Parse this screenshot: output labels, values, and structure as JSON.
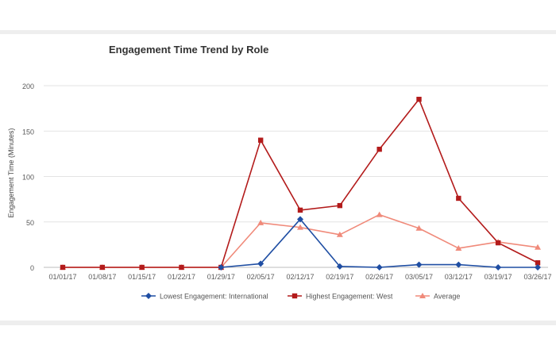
{
  "chart_data": {
    "type": "line",
    "title": "Engagement Time Trend by Role",
    "xlabel": "",
    "ylabel": "Engagement Time (Minutes)",
    "ylim": [
      0,
      200
    ],
    "yticks": [
      0,
      50,
      100,
      150,
      200
    ],
    "grid": true,
    "legend_position": "bottom",
    "categories": [
      "01/01/17",
      "01/08/17",
      "01/15/17",
      "01/22/17",
      "01/29/17",
      "02/05/17",
      "02/12/17",
      "02/19/17",
      "02/26/17",
      "03/05/17",
      "03/12/17",
      "03/19/17",
      "03/26/17"
    ],
    "series": [
      {
        "name": "Lowest Engagement: International",
        "color": "#1f4ea3",
        "marker": "diamond",
        "values": [
          null,
          null,
          null,
          null,
          0,
          4,
          53,
          1,
          0,
          3,
          3,
          0,
          0
        ]
      },
      {
        "name": "Highest Engagement: West",
        "color": "#b31b1b",
        "marker": "square",
        "values": [
          0,
          0,
          0,
          0,
          0,
          140,
          63,
          68,
          130,
          185,
          76,
          27,
          5
        ]
      },
      {
        "name": "Average",
        "color": "#f08a7a",
        "marker": "triangle",
        "values": [
          0,
          0,
          0,
          0,
          0,
          49,
          44,
          36,
          58,
          43,
          21,
          28,
          22
        ]
      }
    ]
  }
}
